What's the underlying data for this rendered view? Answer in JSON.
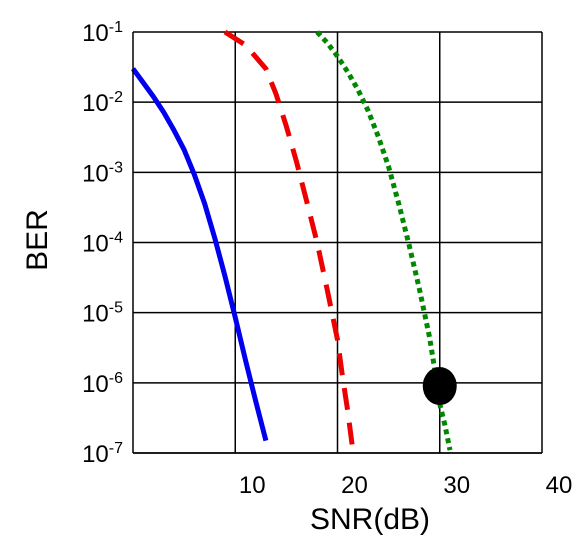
{
  "chart_data": {
    "type": "line",
    "title": "",
    "xlabel": "SNR(dB)",
    "ylabel": "BER",
    "xlim": [
      0,
      40
    ],
    "ylim": [
      1e-07,
      0.1
    ],
    "yscale": "log",
    "grid": true,
    "x_ticks": [
      {
        "value": 10,
        "label": "10"
      },
      {
        "value": 20,
        "label": "20"
      },
      {
        "value": 30,
        "label": "30"
      },
      {
        "value": 40,
        "label": "40"
      }
    ],
    "y_ticks": [
      {
        "value": 0.1,
        "base": "10",
        "exp": "-1"
      },
      {
        "value": 0.01,
        "base": "10",
        "exp": "-2"
      },
      {
        "value": 0.001,
        "base": "10",
        "exp": "-3"
      },
      {
        "value": 0.0001,
        "base": "10",
        "exp": "-4"
      },
      {
        "value": 1e-05,
        "base": "10",
        "exp": "-5"
      },
      {
        "value": 1e-06,
        "base": "10",
        "exp": "-6"
      },
      {
        "value": 1e-07,
        "base": "10",
        "exp": "-7"
      }
    ],
    "series": [
      {
        "style": "solid",
        "color": "#0000ee",
        "x": [
          0,
          1,
          2,
          3,
          4,
          5,
          6,
          7,
          8,
          9,
          10,
          11,
          12,
          13
        ],
        "y": [
          0.03,
          0.019,
          0.012,
          0.0072,
          0.004,
          0.0021,
          0.00093,
          0.00036,
          0.000115,
          3.3e-05,
          8.5e-06,
          2.1e-06,
          5.5e-07,
          1.5e-07
        ]
      },
      {
        "style": "dashed",
        "color": "#ee0000",
        "x": [
          9,
          11,
          13,
          14,
          15,
          16,
          17,
          18,
          19,
          20,
          20.5,
          21,
          21.5
        ],
        "y": [
          0.1,
          0.065,
          0.03,
          0.013,
          0.0045,
          0.0014,
          0.00038,
          0.0001,
          2.1e-05,
          4.1e-06,
          1.2e-06,
          4e-07,
          1.1e-07
        ]
      },
      {
        "style": "dotted",
        "color": "#008800",
        "x": [
          18,
          19,
          20,
          21,
          22,
          23,
          24,
          25,
          26,
          27,
          28,
          29,
          29.5,
          30,
          30.5,
          31
        ],
        "y": [
          0.1,
          0.07,
          0.045,
          0.027,
          0.015,
          0.0075,
          0.0032,
          0.0012,
          0.00035,
          9.2e-05,
          2.2e-05,
          4.5e-06,
          1.6e-06,
          5e-07,
          2.5e-07,
          1.1e-07
        ]
      }
    ],
    "marker": {
      "x": 30,
      "y": 9e-07,
      "color": "#000000"
    }
  }
}
